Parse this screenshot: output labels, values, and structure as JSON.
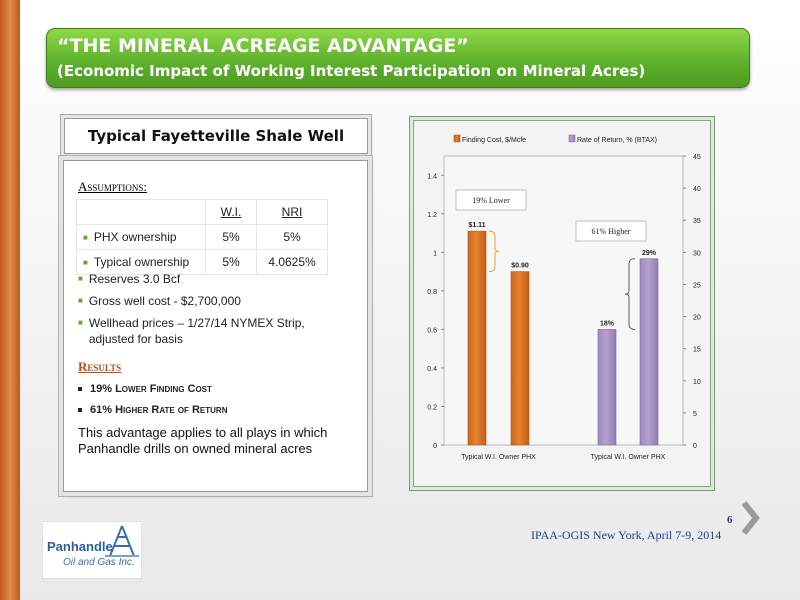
{
  "header": {
    "title": "“THE MINERAL ACREAGE ADVANTAGE”",
    "subtitle": "(Economic Impact of Working Interest Participation on Mineral Acres)"
  },
  "well_title": "Typical Fayetteville Shale Well",
  "assumptions": {
    "heading": "Assumptions:",
    "table": {
      "columns": [
        "",
        "W.I.",
        "NRI"
      ],
      "rows": [
        {
          "label": "PHX ownership",
          "wi": "5%",
          "nri": "5%"
        },
        {
          "label": "Typical  ownership",
          "wi": "5%",
          "nri": "4.0625%"
        }
      ]
    },
    "items": [
      "Reserves  3.0 Bcf",
      "Gross well cost - $2,700,000",
      "Wellhead prices – 1/27/14 NYMEX Strip, adjusted for basis"
    ]
  },
  "results": {
    "heading": "Results",
    "items": [
      "19% Lower Finding Cost",
      "61% Higher Rate of Return"
    ],
    "statement": "This advantage applies to all plays in which Panhandle drills on owned mineral acres"
  },
  "colors": {
    "orange_bar": "#e8822e",
    "purple_bar": "#b3a2cf",
    "title_green": "#5fb22c",
    "results_heading": "#b4501a",
    "footer_blue": "#1f3f8f"
  },
  "chart_data": {
    "type": "bar",
    "categories": [
      "Typical W.I. Owner PHX",
      "Typical W.I. Owner PHX"
    ],
    "series": [
      {
        "name": "Finding Cost, $/Mcfe",
        "axis": "left",
        "values": [
          1.11,
          0.9
        ],
        "labels": [
          "$1.11",
          "$0.90"
        ]
      },
      {
        "name": "Rate of Return, % (BTAX)",
        "axis": "right",
        "values": [
          18,
          29
        ],
        "labels": [
          "18%",
          "29%"
        ]
      }
    ],
    "left_axis": {
      "ylim": [
        0,
        1.5
      ],
      "ticks": [
        "0",
        "0.2",
        "0.4",
        "0.6",
        "0.8",
        "1",
        "1.2",
        "1.4"
      ]
    },
    "right_axis": {
      "ylim": [
        0,
        45
      ],
      "ticks": [
        "0",
        "5",
        "10",
        "15",
        "20",
        "25",
        "30",
        "35",
        "40",
        "45"
      ]
    },
    "annotations": [
      "19% Lower",
      "61% Higher"
    ],
    "legend": "top"
  },
  "footer": {
    "event": "IPAA-OGIS New York, April 7-9, 2014",
    "page_number": "6"
  },
  "logo": {
    "name": "Panhandle",
    "tagline": "Oil and Gas Inc."
  },
  "icons": {
    "next": "chevron-right-icon",
    "logo_mark": "derrick-icon"
  }
}
